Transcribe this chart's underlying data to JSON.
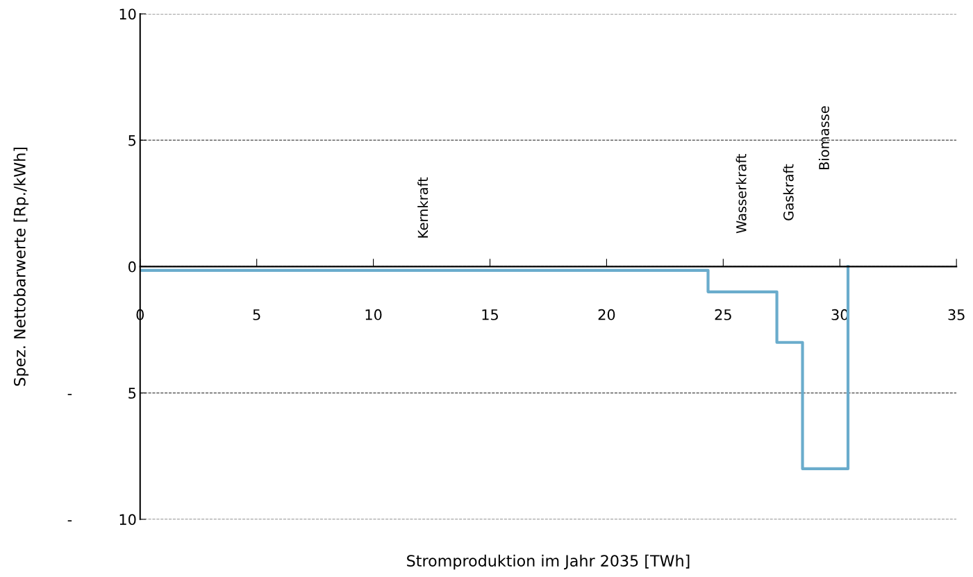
{
  "chart_data": {
    "type": "step",
    "xlabel": "Stromproduktion im Jahr 2035 [TWh]",
    "ylabel": "Spez. Nettobarwerte [Rp./kWh]",
    "series": [
      {
        "color": "#6aaccc",
        "x": [
          0,
          24.35,
          27.3,
          28.4,
          30.35
        ],
        "values": [
          -0.15,
          -1,
          -3,
          -8,
          0
        ]
      }
    ],
    "xlim": [
      0,
      35
    ],
    "xticks": [
      0,
      5,
      10,
      15,
      20,
      25,
      30,
      35
    ],
    "ylim": [
      -10,
      10
    ],
    "yticks": [
      {
        "value": -10,
        "label": "-          10"
      },
      {
        "value": -5,
        "label": "-            5"
      },
      0,
      5,
      10
    ],
    "grid": "y",
    "line_style": "solid",
    "annotations": [
      "Kernkraft",
      "Wasserkraft",
      "Gaskraft",
      "Biomasse"
    ]
  }
}
